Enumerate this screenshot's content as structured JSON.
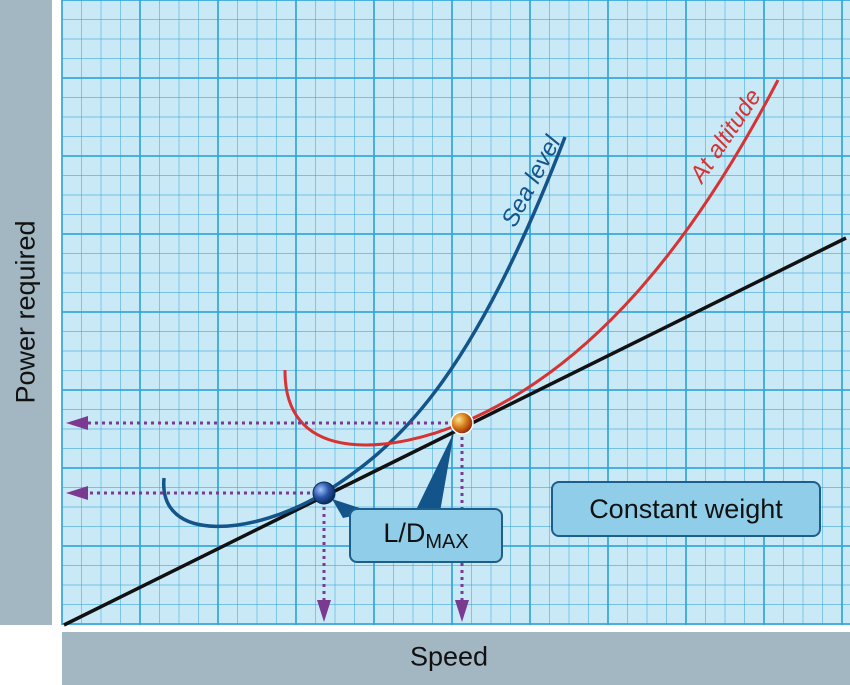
{
  "labels": {
    "y_axis": "Power required",
    "x_axis": "Speed"
  },
  "curves": {
    "sea_level": "Sea level",
    "at_altitude": "At altitude"
  },
  "annotations": {
    "ld_main": "L/D",
    "ld_sub": "MAX",
    "constant_weight": "Constant weight"
  },
  "colors": {
    "background_grid": "#c9e9f7",
    "grid_line": "#2fa3d9",
    "sea_level": "#13548a",
    "at_altitude": "#d63333",
    "tangent_line": "#111111",
    "projection": "#7a3a8f",
    "label_bar": "#a3b7c2",
    "callout": "#8fcde8"
  }
}
